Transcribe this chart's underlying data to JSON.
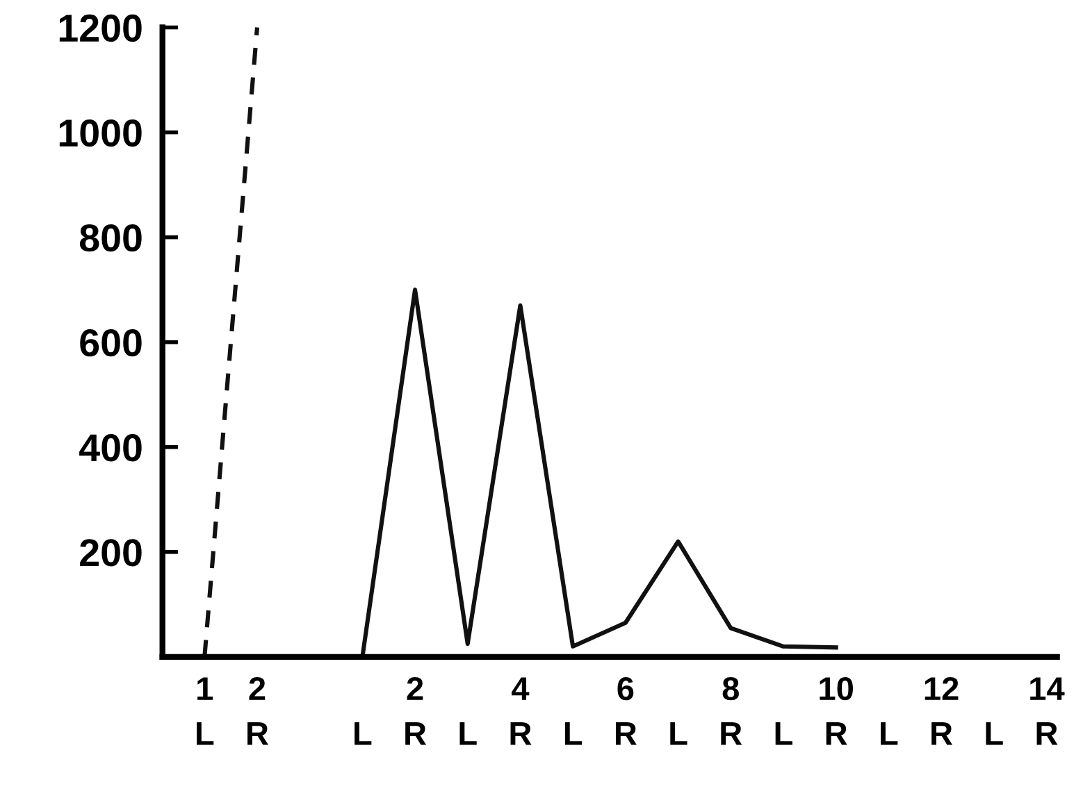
{
  "chart_data": {
    "type": "line",
    "categories": [
      "1\nL",
      "2\nR",
      null,
      "L",
      "2\nR",
      "L",
      "4\nR",
      "L",
      "6\nR",
      "L",
      "8\nR",
      "L",
      "10\nR",
      "L",
      "12\nR",
      "L",
      "14\nR"
    ],
    "series": [
      {
        "color": "#111111",
        "line_style": "dashed",
        "values": [
          0,
          1200,
          null,
          null,
          null,
          null,
          null,
          null,
          null,
          null,
          null,
          null,
          null,
          null,
          null,
          null,
          null
        ]
      },
      {
        "color": "#111111",
        "line_style": "solid",
        "values": [
          null,
          null,
          null,
          0,
          700,
          25,
          670,
          20,
          65,
          220,
          55,
          20,
          18,
          null,
          null,
          null,
          null
        ]
      }
    ],
    "ylim": [
      0,
      1200
    ],
    "yticks": [
      200,
      400,
      600,
      800,
      1000,
      1200
    ],
    "grid": false,
    "legend": false,
    "marker": "none"
  }
}
